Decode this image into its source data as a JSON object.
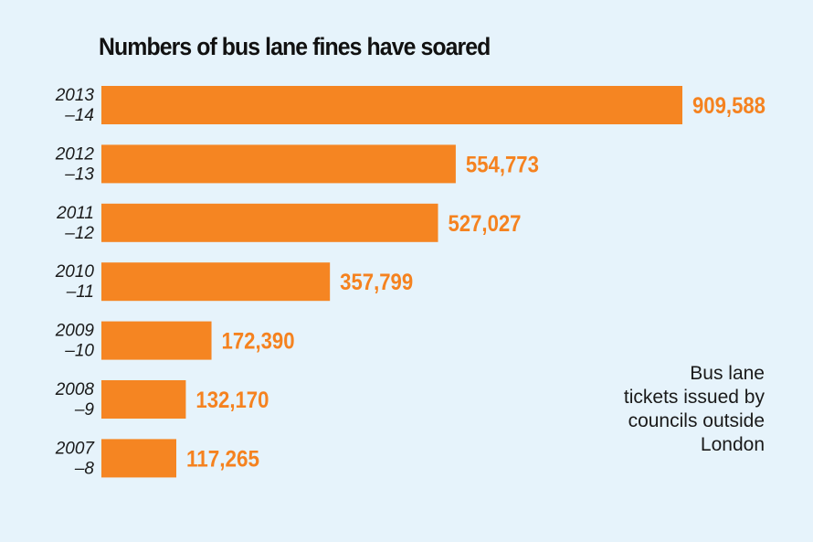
{
  "title": "Numbers of bus lane fines have soared",
  "annotation": [
    "Bus lane",
    "tickets issued by",
    "councils outside",
    "London"
  ],
  "colors": {
    "background": "#e6f3fb",
    "bar": "#f58522",
    "value_text": "#f5821f",
    "text": "#1a1a1a"
  },
  "chart_data": {
    "type": "bar",
    "orientation": "horizontal",
    "title": "Numbers of bus lane fines have soared",
    "categories": [
      [
        "2013",
        "–14"
      ],
      [
        "2012",
        "–13"
      ],
      [
        "2011",
        "–12"
      ],
      [
        "2010",
        "–11"
      ],
      [
        "2009",
        "–10"
      ],
      [
        "2008",
        "–9"
      ],
      [
        "2007",
        "–8"
      ]
    ],
    "values": [
      909588,
      554773,
      527027,
      357799,
      172390,
      132170,
      117265
    ],
    "value_labels": [
      "909,588",
      "554,773",
      "527,027",
      "357,799",
      "172,390",
      "132,170",
      "117,265"
    ],
    "xlabel": "",
    "ylabel": "",
    "grid": false
  }
}
